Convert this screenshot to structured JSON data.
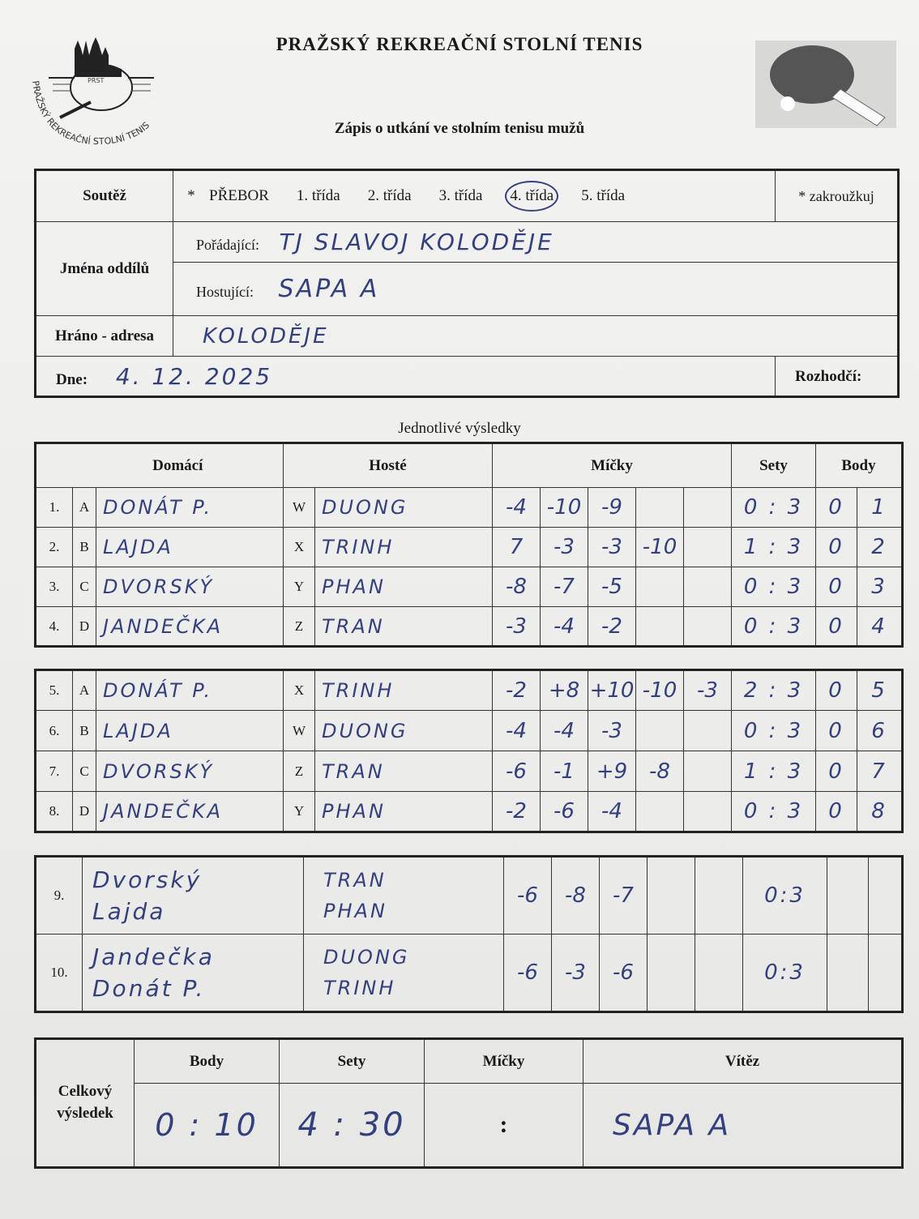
{
  "header": {
    "title": "PRAŽSKÝ REKREAČNÍ STOLNÍ TENIS",
    "subtitle": "Zápis o utkání ve stolním tenisu mužů",
    "logo_text": "PRAŽSKÝ REKREAČNÍ STOLNÍ TENIS",
    "logo_abbr": "PRST"
  },
  "info": {
    "soutez_label": "Soutěž",
    "star": "*",
    "classes": [
      "PŘEBOR",
      "1. třída",
      "2. třída",
      "3. třída",
      "4. třída",
      "5. třída"
    ],
    "selected_class": "4. třída",
    "circle_note": "* zakroužkuj",
    "jmena_label": "Jména oddílů",
    "poradajici_label": "Pořádající:",
    "poradajici_value": "TJ SLAVOJ KOLODĚJE",
    "hostujici_label": "Hostující:",
    "hostujici_value": "SAPA A",
    "hrano_label": "Hráno - adresa",
    "hrano_value": "KOLODĚJE",
    "dne_label": "Dne:",
    "dne_value": "4. 12. 2025",
    "rozhodci_label": "Rozhodčí:",
    "rozhodci_value": ""
  },
  "results": {
    "section_title": "Jednotlivé výsledky",
    "headers": {
      "home": "Domácí",
      "guest": "Hosté",
      "balls": "Míčky",
      "sets": "Sety",
      "points": "Body"
    },
    "singles_block1": [
      {
        "no": "1.",
        "hl": "A",
        "home": "DONÁT P.",
        "gl": "W",
        "guest": "DUONG",
        "balls": [
          "-4",
          "-10",
          "-9",
          "",
          ""
        ],
        "sets": "0 : 3",
        "body_home": "0",
        "body_guest": "1"
      },
      {
        "no": "2.",
        "hl": "B",
        "home": "LAJDA",
        "gl": "X",
        "guest": "TRINH",
        "balls": [
          "7",
          "-3",
          "-3",
          "-10",
          ""
        ],
        "sets": "1 : 3",
        "body_home": "0",
        "body_guest": "2"
      },
      {
        "no": "3.",
        "hl": "C",
        "home": "DVORSKÝ",
        "gl": "Y",
        "guest": "PHAN",
        "balls": [
          "-8",
          "-7",
          "-5",
          "",
          ""
        ],
        "sets": "0 : 3",
        "body_home": "0",
        "body_guest": "3"
      },
      {
        "no": "4.",
        "hl": "D",
        "home": "JANDEČKA",
        "gl": "Z",
        "guest": "TRAN",
        "balls": [
          "-3",
          "-4",
          "-2",
          "",
          ""
        ],
        "sets": "0 : 3",
        "body_home": "0",
        "body_guest": "4"
      }
    ],
    "singles_block2": [
      {
        "no": "5.",
        "hl": "A",
        "home": "DONÁT P.",
        "gl": "X",
        "guest": "TRINH",
        "balls": [
          "-2",
          "+8",
          "+10",
          "-10",
          "-3"
        ],
        "sets": "2 : 3",
        "body_home": "0",
        "body_guest": "5"
      },
      {
        "no": "6.",
        "hl": "B",
        "home": "LAJDA",
        "gl": "W",
        "guest": "DUONG",
        "balls": [
          "-4",
          "-4",
          "-3",
          "",
          ""
        ],
        "sets": "0 : 3",
        "body_home": "0",
        "body_guest": "6"
      },
      {
        "no": "7.",
        "hl": "C",
        "home": "DVORSKÝ",
        "gl": "Z",
        "guest": "TRAN",
        "balls": [
          "-6",
          "-1",
          "+9",
          "-8",
          ""
        ],
        "sets": "1 : 3",
        "body_home": "0",
        "body_guest": "7"
      },
      {
        "no": "8.",
        "hl": "D",
        "home": "JANDEČKA",
        "gl": "Y",
        "guest": "PHAN",
        "balls": [
          "-2",
          "-6",
          "-4",
          "",
          ""
        ],
        "sets": "0 : 3",
        "body_home": "0",
        "body_guest": "8"
      }
    ],
    "doubles": [
      {
        "no": "9.",
        "home": [
          "Dvorský",
          "Lajda"
        ],
        "guest": [
          "TRAN",
          "PHAN"
        ],
        "balls": [
          "-6",
          "-8",
          "-7",
          "",
          ""
        ],
        "sets": "0:3",
        "body_home": "",
        "body_guest": ""
      },
      {
        "no": "10.",
        "home": [
          "Jandečka",
          "Donát P."
        ],
        "guest": [
          "DUONG",
          "TRINH"
        ],
        "balls": [
          "-6",
          "-3",
          "-6",
          "",
          ""
        ],
        "sets": "0:3",
        "body_home": "",
        "body_guest": ""
      }
    ]
  },
  "total": {
    "label": "Celkový výsledek",
    "body_label": "Body",
    "sety_label": "Sety",
    "micky_label": "Míčky",
    "vitez_label": "Vítěz",
    "body_value": "0 : 10",
    "sety_value": "4 : 30",
    "micky_value": ":",
    "vitez_value": "SAPA A"
  },
  "colors": {
    "ink": "#34407e",
    "paper": "#f1f1ef"
  }
}
